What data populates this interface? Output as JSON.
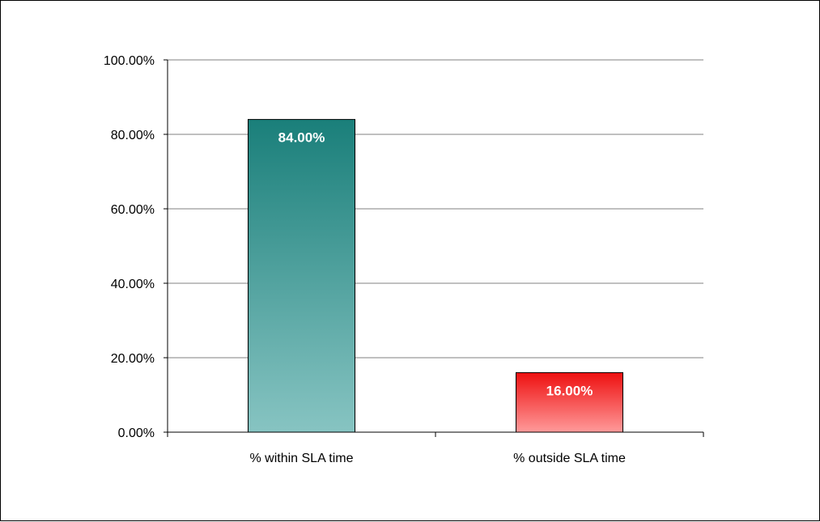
{
  "chart_data": {
    "type": "bar",
    "categories": [
      "% within SLA time",
      "% outside SLA time"
    ],
    "values": [
      84.0,
      16.0
    ],
    "data_labels": [
      "84.00%",
      "16.00%"
    ],
    "y_ticks": [
      "0.00%",
      "20.00%",
      "40.00%",
      "60.00%",
      "80.00%",
      "100.00%"
    ],
    "ylim": [
      0,
      100
    ],
    "grid": true,
    "bar_colors": [
      {
        "top": "#1a7f7a",
        "bottom": "#87c4c2"
      },
      {
        "top": "#ee1010",
        "bottom": "#ff9a9a"
      }
    ],
    "grid_color": "#c0c0c0"
  }
}
